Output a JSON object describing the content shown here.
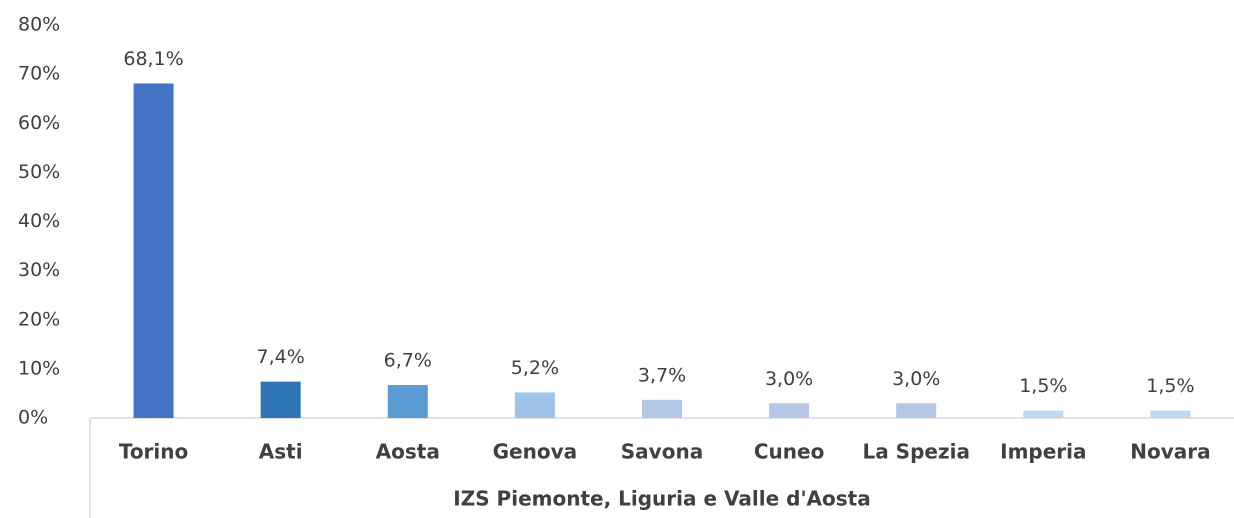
{
  "chart_data": {
    "type": "bar",
    "x_label": "IZS Piemonte, Liguria e Valle d'Aosta",
    "categories": [
      "Torino",
      "Asti",
      "Aosta",
      "Genova",
      "Savona",
      "Cuneo",
      "La Spezia",
      "Imperia",
      "Novara"
    ],
    "values": [
      68.1,
      7.4,
      6.7,
      5.2,
      3.7,
      3.0,
      3.0,
      1.5,
      1.5
    ],
    "value_labels": [
      "68,1%",
      "7,4%",
      "6,7%",
      "5,2%",
      "3,7%",
      "3,0%",
      "3,0%",
      "1,5%",
      "1,5%"
    ],
    "colors": [
      "#4472c4",
      "#2e75b6",
      "#5b9bd5",
      "#9dc3e6",
      "#b4c7e7",
      "#b4c7e7",
      "#b4c7e7",
      "#bdd7ee",
      "#bdd7ee"
    ],
    "ylim": [
      0,
      80
    ],
    "yticks": [
      {
        "value": 0,
        "label": "0%"
      },
      {
        "value": 10,
        "label": "10%"
      },
      {
        "value": 20,
        "label": "20%"
      },
      {
        "value": 30,
        "label": "30%"
      },
      {
        "value": 40,
        "label": "40%"
      },
      {
        "value": 50,
        "label": "50%"
      },
      {
        "value": 60,
        "label": "60%"
      },
      {
        "value": 70,
        "label": "70%"
      },
      {
        "value": 80,
        "label": "80%"
      }
    ],
    "grid": false
  }
}
